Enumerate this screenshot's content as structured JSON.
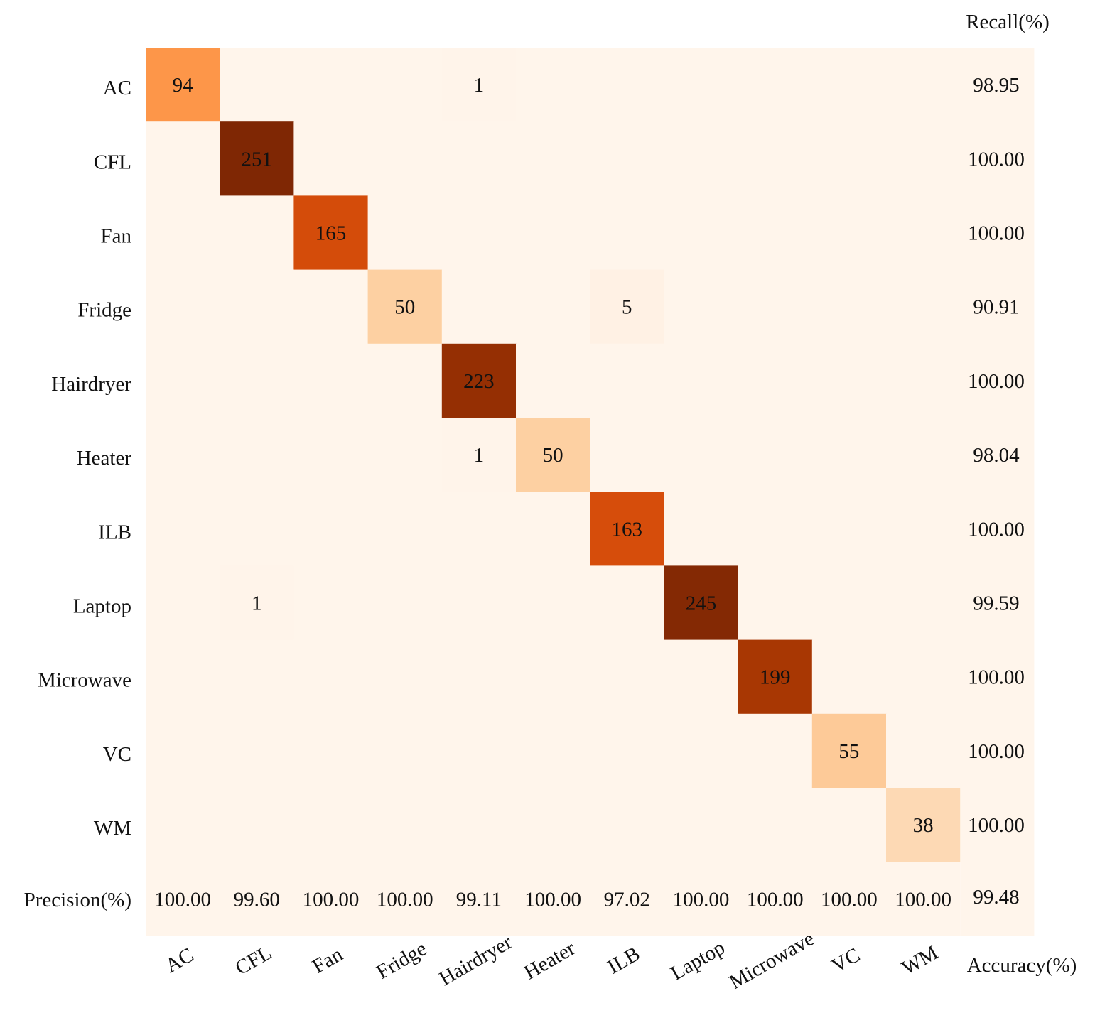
{
  "chart_data": {
    "type": "heatmap",
    "title": "",
    "row_labels": [
      "AC",
      "CFL",
      "Fan",
      "Fridge",
      "Hairdryer",
      "Heater",
      "ILB",
      "Laptop",
      "Microwave",
      "VC",
      "WM"
    ],
    "col_labels": [
      "AC",
      "CFL",
      "Fan",
      "Fridge",
      "Hairdryer",
      "Heater",
      "ILB",
      "Laptop",
      "Microwave",
      "VC",
      "WM"
    ],
    "matrix": [
      [
        94,
        0,
        0,
        0,
        1,
        0,
        0,
        0,
        0,
        0,
        0
      ],
      [
        0,
        251,
        0,
        0,
        0,
        0,
        0,
        0,
        0,
        0,
        0
      ],
      [
        0,
        0,
        165,
        0,
        0,
        0,
        0,
        0,
        0,
        0,
        0
      ],
      [
        0,
        0,
        0,
        50,
        0,
        0,
        5,
        0,
        0,
        0,
        0
      ],
      [
        0,
        0,
        0,
        0,
        223,
        0,
        0,
        0,
        0,
        0,
        0
      ],
      [
        0,
        0,
        0,
        0,
        1,
        50,
        0,
        0,
        0,
        0,
        0
      ],
      [
        0,
        0,
        0,
        0,
        0,
        0,
        163,
        0,
        0,
        0,
        0
      ],
      [
        0,
        1,
        0,
        0,
        0,
        0,
        0,
        245,
        0,
        0,
        0
      ],
      [
        0,
        0,
        0,
        0,
        0,
        0,
        0,
        0,
        199,
        0,
        0
      ],
      [
        0,
        0,
        0,
        0,
        0,
        0,
        0,
        0,
        0,
        55,
        0
      ],
      [
        0,
        0,
        0,
        0,
        0,
        0,
        0,
        0,
        0,
        0,
        38
      ]
    ],
    "recall_label": "Recall(%)",
    "recall": [
      "98.95",
      "100.00",
      "100.00",
      "90.91",
      "100.00",
      "98.04",
      "100.00",
      "99.59",
      "100.00",
      "100.00",
      "100.00"
    ],
    "precision_label": "Precision(%)",
    "precision": [
      "100.00",
      "99.60",
      "100.00",
      "100.00",
      "99.11",
      "100.00",
      "97.02",
      "100.00",
      "100.00",
      "100.00",
      "100.00"
    ],
    "accuracy_label": "Accuracy(%)",
    "accuracy": "99.48",
    "colormap": [
      "#fff5eb",
      "#fdd0a2",
      "#fd8d3c",
      "#e6550d",
      "#a63603",
      "#7f2704"
    ]
  }
}
